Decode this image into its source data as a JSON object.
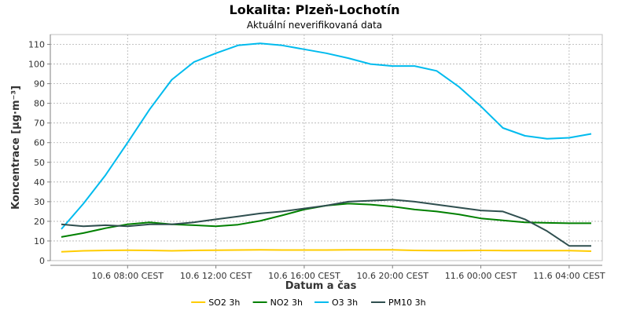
{
  "chart_data": {
    "type": "line",
    "title": "Lokalita: Plzeň-Lochotín",
    "subtitle": "Aktuální neverifikovaná data",
    "xlabel": "Datum a čas",
    "ylabel": "Koncentrace [µg·m⁻³]",
    "ylim": [
      0,
      115
    ],
    "yticks": [
      0,
      10,
      20,
      30,
      40,
      50,
      60,
      70,
      80,
      90,
      100,
      110
    ],
    "x_hours": [
      5,
      6,
      7,
      8,
      9,
      10,
      11,
      12,
      13,
      14,
      15,
      16,
      17,
      18,
      19,
      20,
      21,
      22,
      23,
      24,
      25,
      26,
      27,
      28,
      29
    ],
    "xticks": [
      {
        "hour": 8,
        "label": "10.6 08:00 CEST"
      },
      {
        "hour": 12,
        "label": "10.6 12:00 CEST"
      },
      {
        "hour": 16,
        "label": "10.6 16:00 CEST"
      },
      {
        "hour": 20,
        "label": "10.6 20:00 CEST"
      },
      {
        "hour": 24,
        "label": "11.6 00:00 CEST"
      },
      {
        "hour": 28,
        "label": "11.6 04:00 CEST"
      }
    ],
    "grid": true,
    "legend_position": "bottom",
    "series": [
      {
        "name": "SO2 3h",
        "color": "#ffcc00",
        "values": [
          4.5,
          5,
          5.2,
          5.3,
          5.2,
          5,
          5.2,
          5.3,
          5.4,
          5.5,
          5.4,
          5.4,
          5.4,
          5.5,
          5.5,
          5.5,
          5.2,
          5.1,
          5.1,
          5.2,
          5.1,
          5.1,
          5.1,
          5.1,
          4.8
        ]
      },
      {
        "name": "NO2 3h",
        "color": "#008000",
        "values": [
          12,
          14,
          16.5,
          18.5,
          19.5,
          18.5,
          18,
          17.5,
          18.3,
          20.2,
          23,
          26,
          28,
          29,
          28.5,
          27.5,
          26,
          25,
          23.5,
          21.5,
          20.5,
          19.5,
          19.2,
          19,
          19
        ]
      },
      {
        "name": "O3 3h",
        "color": "#00bbee",
        "values": [
          16,
          29,
          43.5,
          60,
          77,
          92,
          101,
          105.5,
          109.5,
          110.5,
          109.5,
          107.5,
          105.5,
          103,
          100,
          99,
          99,
          96.5,
          88.5,
          78.5,
          67.5,
          63.5,
          62,
          62.5,
          64.5
        ]
      },
      {
        "name": "PM10 3h",
        "color": "#2f4f4f",
        "values": [
          18.5,
          17.5,
          18,
          17.5,
          18.5,
          18.5,
          19.5,
          21,
          22.5,
          24,
          25,
          26.5,
          28,
          30,
          30.5,
          31,
          30,
          28.5,
          27,
          25.5,
          25,
          21,
          15,
          7.5,
          7.5
        ]
      }
    ]
  }
}
